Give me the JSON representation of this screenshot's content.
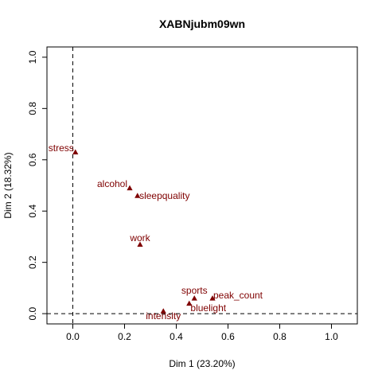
{
  "chart_data": {
    "type": "scatter",
    "title": "XABNjubm09wn",
    "xlabel": "Dim 1 (23.20%)",
    "ylabel": "Dim 2 (18.32%)",
    "xlim": [
      -0.1,
      1.1
    ],
    "ylim": [
      -0.04,
      1.04
    ],
    "xticks": [
      0.0,
      0.2,
      0.4,
      0.6,
      0.8,
      1.0
    ],
    "yticks": [
      0.0,
      0.2,
      0.4,
      0.6,
      0.8,
      1.0
    ],
    "xtick_labels": [
      "0.0",
      "0.2",
      "0.4",
      "0.6",
      "0.8",
      "1.0"
    ],
    "ytick_labels": [
      "0.0",
      "0.2",
      "0.4",
      "0.6",
      "0.8",
      "1.0"
    ],
    "reference_lines": {
      "x": 0,
      "y": 0,
      "style": "dashed"
    },
    "grid": false,
    "point_color": "#7f0000",
    "marker": "triangle",
    "points": [
      {
        "label": "stress",
        "x": 0.01,
        "y": 0.63
      },
      {
        "label": "alcohol",
        "x": 0.22,
        "y": 0.49
      },
      {
        "label": "sleepquality",
        "x": 0.25,
        "y": 0.46
      },
      {
        "label": "work",
        "x": 0.26,
        "y": 0.27
      },
      {
        "label": "sports",
        "x": 0.47,
        "y": 0.06
      },
      {
        "label": "peak_count",
        "x": 0.54,
        "y": 0.06
      },
      {
        "label": "bluelight",
        "x": 0.45,
        "y": 0.04
      },
      {
        "label": "intensity",
        "x": 0.35,
        "y": 0.01
      }
    ]
  }
}
